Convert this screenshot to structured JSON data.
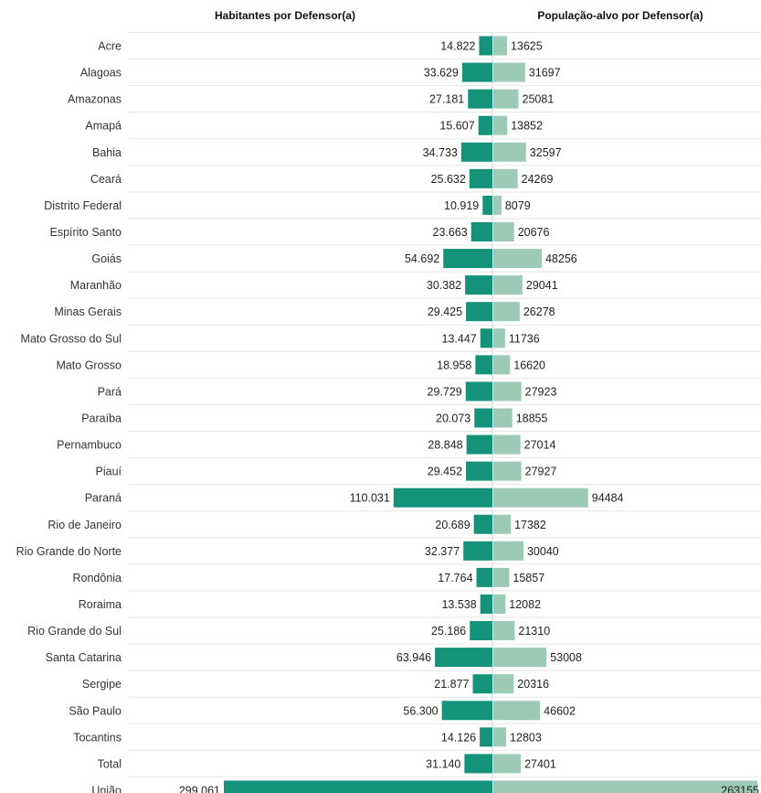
{
  "chart_data": {
    "type": "bar",
    "orientation": "horizontal-diverging",
    "title": "",
    "left_header": "Habitantes por Defensor(a)",
    "right_header": "População-alvo por Defensor(a)",
    "categories": [
      "Acre",
      "Alagoas",
      "Amazonas",
      "Amapá",
      "Bahia",
      "Ceará",
      "Distrito Federal",
      "Espírito Santo",
      "Goiás",
      "Maranhão",
      "Minas Gerais",
      "Mato Grosso do Sul",
      "Mato Grosso",
      "Pará",
      "Paraíba",
      "Pernambuco",
      "Piauí",
      "Paraná",
      "Rio de Janeiro",
      "Rio Grande do Norte",
      "Rondônia",
      "Roraima",
      "Rio Grande do Sul",
      "Santa Catarina",
      "Sergipe",
      "São Paulo",
      "Tocantins",
      "Total",
      "União"
    ],
    "series": [
      {
        "name": "Habitantes por Defensor(a)",
        "color": "#14937a",
        "values": [
          14822,
          33629,
          27181,
          15607,
          34733,
          25632,
          10919,
          23663,
          54692,
          30382,
          29425,
          13447,
          18958,
          29729,
          20073,
          28848,
          29452,
          110031,
          20689,
          32377,
          17764,
          13538,
          25186,
          63946,
          21877,
          56300,
          14126,
          31140,
          299061
        ],
        "labels": [
          "14.822",
          "33.629",
          "27.181",
          "15.607",
          "34.733",
          "25.632",
          "10.919",
          "23.663",
          "54.692",
          "30.382",
          "29.425",
          "13.447",
          "18.958",
          "29.729",
          "20.073",
          "28.848",
          "29.452",
          "110.031",
          "20.689",
          "32.377",
          "17.764",
          "13.538",
          "25.186",
          "63.946",
          "21.877",
          "56.300",
          "14.126",
          "31.140",
          "299.061"
        ]
      },
      {
        "name": "População-alvo por Defensor(a)",
        "color": "#9ccab6",
        "values": [
          13625,
          31697,
          25081,
          13852,
          32597,
          24269,
          8079,
          20676,
          48256,
          29041,
          26278,
          11736,
          16620,
          27923,
          18855,
          27014,
          27927,
          94484,
          17382,
          30040,
          15857,
          12082,
          21310,
          53008,
          20316,
          46602,
          12803,
          27401,
          263155
        ],
        "labels": [
          "13625",
          "31697",
          "25081",
          "13852",
          "32597",
          "24269",
          "8079",
          "20676",
          "48256",
          "29041",
          "26278",
          "11736",
          "16620",
          "27923",
          "18855",
          "27014",
          "27927",
          "94484",
          "17382",
          "30040",
          "15857",
          "12082",
          "21310",
          "53008",
          "20316",
          "46602",
          "12803",
          "27401",
          "263155"
        ]
      }
    ]
  }
}
